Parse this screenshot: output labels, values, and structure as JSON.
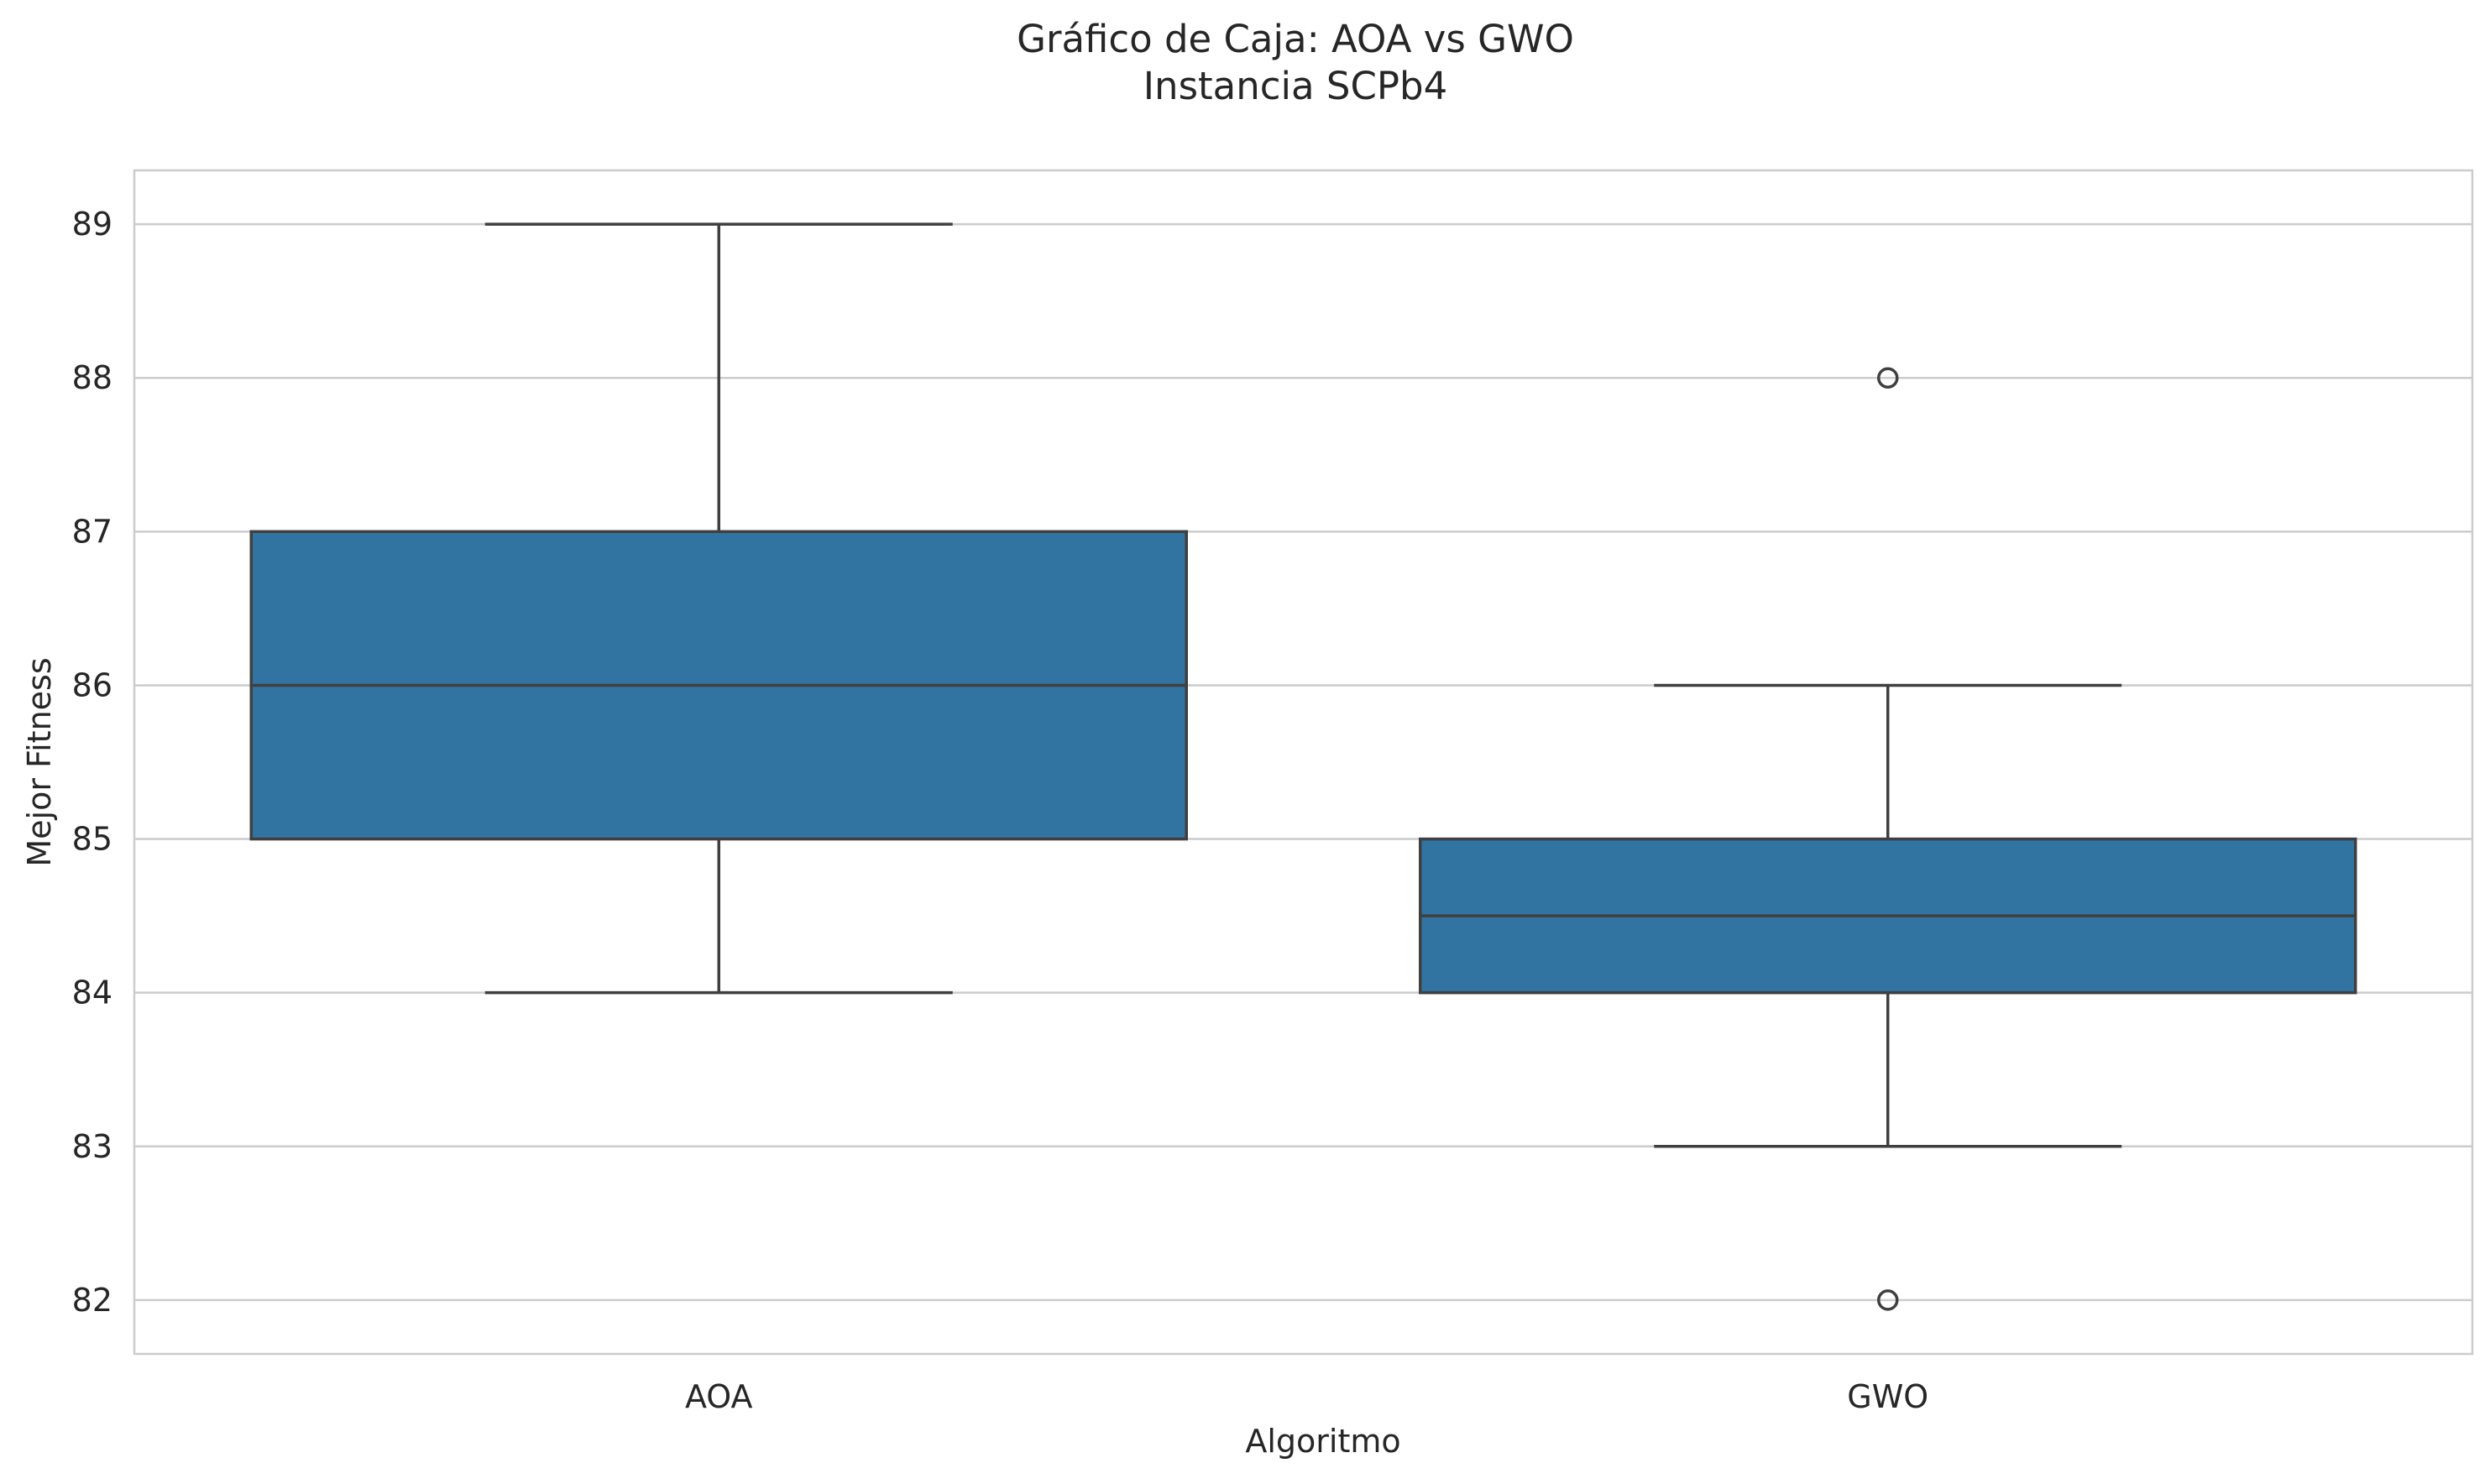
{
  "chart_data": {
    "type": "box",
    "title": "Gráfico de Caja: AOA vs GWO",
    "subtitle": "Instancia SCPb4",
    "xlabel": "Algoritmo",
    "ylabel": "Mejor Fitness",
    "ylim": [
      81.65,
      89.35
    ],
    "yticks": [
      82,
      83,
      84,
      85,
      86,
      87,
      88,
      89
    ],
    "grid": true,
    "categories": [
      "AOA",
      "GWO"
    ],
    "series": [
      {
        "category": "AOA",
        "whisker_low": 84,
        "q1": 85,
        "median": 86,
        "q3": 87,
        "whisker_high": 89,
        "outliers": []
      },
      {
        "category": "GWO",
        "whisker_low": 83,
        "q1": 84,
        "median": 84.5,
        "q3": 85,
        "whisker_high": 86,
        "outliers": [
          88,
          82
        ]
      }
    ],
    "colors": {
      "box_fill": "#3274a1",
      "box_line": "#3f3f3f",
      "grid": "#cccccc",
      "frame": "#cccccc"
    }
  }
}
